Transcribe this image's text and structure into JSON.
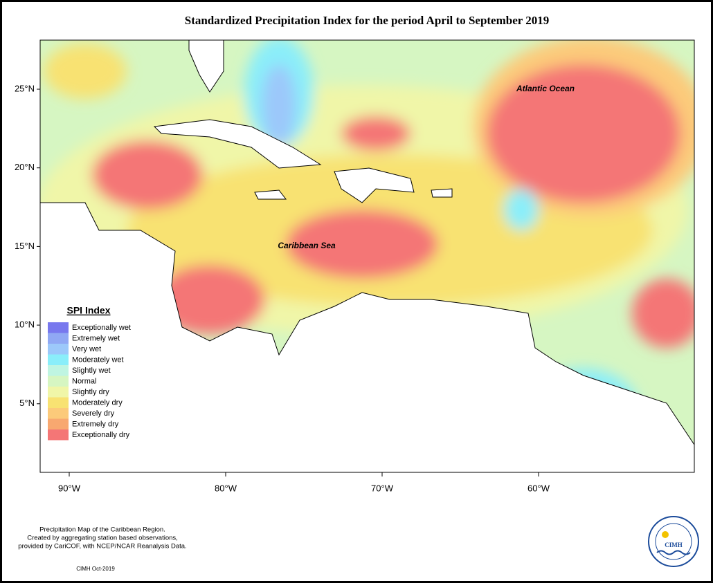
{
  "title": "Standardized Precipitation Index for the period April to September 2019",
  "map": {
    "lat_labels": [
      "25°N",
      "20°N",
      "15°N",
      "10°N",
      "5°N"
    ],
    "lon_labels": [
      "90°W",
      "80°W",
      "70°W",
      "60°W"
    ],
    "places": [
      "Atlantic Ocean",
      "Caribbean Sea"
    ]
  },
  "legend": {
    "title": "SPI Index",
    "items": [
      {
        "label": "Exceptionally wet",
        "color": "#7878ee"
      },
      {
        "label": "Extremely wet",
        "color": "#90a8f4"
      },
      {
        "label": "Very wet",
        "color": "#9cc8fa"
      },
      {
        "label": "Moderately wet",
        "color": "#8aeefa"
      },
      {
        "label": "Slightly wet",
        "color": "#bff5e2"
      },
      {
        "label": "Normal",
        "color": "#d6f6c2"
      },
      {
        "label": "Slightly dry",
        "color": "#f0f6a8"
      },
      {
        "label": "Moderately dry",
        "color": "#f8e272"
      },
      {
        "label": "Severely dry",
        "color": "#fcca7a"
      },
      {
        "label": "Extremely dry",
        "color": "#f8a870"
      },
      {
        "label": "Exceptionally dry",
        "color": "#f47676"
      }
    ]
  },
  "footer": {
    "lines": [
      "Precipitation Map of the Caribbean Region.",
      "Created by aggregating station based observations,",
      "provided by CariCOF, with NCEP/NCAR Reanalysis Data."
    ],
    "credit": "CIMH Oct-2019"
  },
  "logo": {
    "text": "CIMH"
  }
}
